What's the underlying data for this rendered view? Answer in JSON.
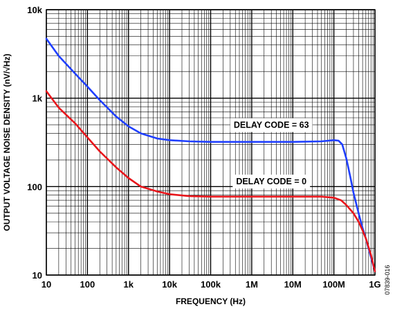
{
  "chart_data": {
    "type": "line",
    "xlabel": "FREQUENCY (Hz)",
    "ylabel": "OUTPUT VOLTAGE NOISE DENSITY (nV/√Hz)",
    "x_scale": "log",
    "y_scale": "log",
    "xlim": [
      10,
      1000000000
    ],
    "ylim": [
      10,
      10000
    ],
    "grid": true,
    "x_ticks": [
      {
        "value": 10,
        "label": "10"
      },
      {
        "value": 100,
        "label": "100"
      },
      {
        "value": 1000,
        "label": "1k"
      },
      {
        "value": 10000,
        "label": "10k"
      },
      {
        "value": 100000,
        "label": "100k"
      },
      {
        "value": 1000000,
        "label": "1M"
      },
      {
        "value": 10000000,
        "label": "10M"
      },
      {
        "value": 100000000,
        "label": "100M"
      },
      {
        "value": 1000000000,
        "label": "1G"
      }
    ],
    "y_ticks": [
      {
        "value": 10,
        "label": "10"
      },
      {
        "value": 100,
        "label": "100"
      },
      {
        "value": 1000,
        "label": "1k"
      },
      {
        "value": 10000,
        "label": "10k"
      }
    ],
    "series": [
      {
        "name": "DELAY CODE = 63",
        "color": "#1f3fff",
        "points": [
          [
            10,
            4700
          ],
          [
            20,
            3000
          ],
          [
            50,
            1900
          ],
          [
            100,
            1350
          ],
          [
            200,
            950
          ],
          [
            500,
            620
          ],
          [
            1000,
            480
          ],
          [
            2000,
            400
          ],
          [
            5000,
            350
          ],
          [
            10000,
            335
          ],
          [
            30000,
            325
          ],
          [
            100000,
            320
          ],
          [
            1000000,
            320
          ],
          [
            10000000,
            320
          ],
          [
            50000000,
            325
          ],
          [
            100000000,
            335
          ],
          [
            130000000,
            330
          ],
          [
            160000000,
            300
          ],
          [
            200000000,
            210
          ],
          [
            250000000,
            130
          ],
          [
            300000000,
            85
          ],
          [
            400000000,
            50
          ],
          [
            500000000,
            34
          ],
          [
            600000000,
            26
          ],
          [
            800000000,
            16
          ],
          [
            1000000000,
            11
          ]
        ]
      },
      {
        "name": "DELAY CODE = 0",
        "color": "#e8151b",
        "points": [
          [
            10,
            1200
          ],
          [
            20,
            780
          ],
          [
            50,
            520
          ],
          [
            100,
            360
          ],
          [
            200,
            250
          ],
          [
            500,
            165
          ],
          [
            1000,
            125
          ],
          [
            2000,
            100
          ],
          [
            5000,
            88
          ],
          [
            10000,
            82
          ],
          [
            30000,
            78
          ],
          [
            100000,
            77
          ],
          [
            1000000,
            77
          ],
          [
            10000000,
            77
          ],
          [
            50000000,
            77
          ],
          [
            100000000,
            75
          ],
          [
            150000000,
            70
          ],
          [
            200000000,
            62
          ],
          [
            300000000,
            50
          ],
          [
            400000000,
            40
          ],
          [
            500000000,
            32
          ],
          [
            600000000,
            26
          ],
          [
            800000000,
            17
          ],
          [
            1000000000,
            11
          ]
        ]
      }
    ],
    "annotations": [
      {
        "text": "DELAY CODE = 63",
        "x": 3000000,
        "y": 500
      },
      {
        "text": "DELAY CODE = 0",
        "x": 3000000,
        "y": 115
      }
    ],
    "figure_id": "07839-016"
  }
}
